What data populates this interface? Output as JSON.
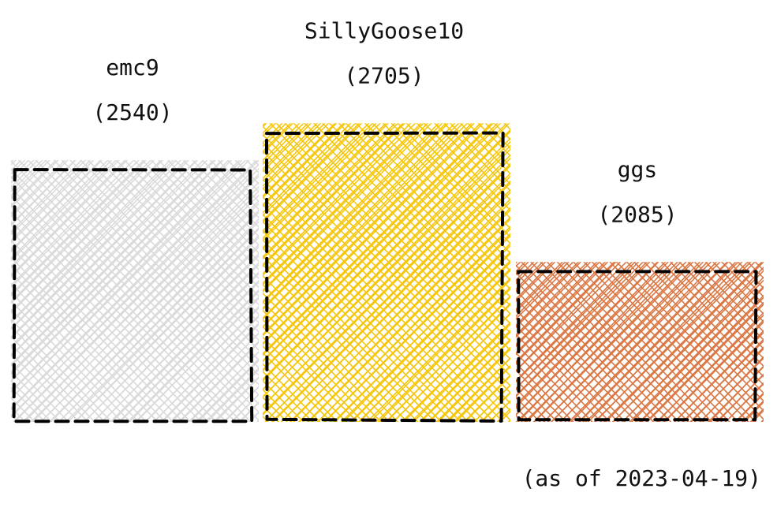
{
  "chart_data": {
    "type": "bar",
    "categories": [
      "emc9",
      "SillyGoose10",
      "ggs"
    ],
    "values": [
      2540,
      2705,
      2085
    ],
    "value_labels": [
      "(2540)",
      "(2705)",
      "(2085)"
    ],
    "colors": [
      "#d9d9d9",
      "#f5c400",
      "#d9713b"
    ],
    "style": "hand-drawn hatched bars with dashed black outlines",
    "grid": false,
    "axes_visible": false
  },
  "footnote": "(as of 2023-04-19)"
}
